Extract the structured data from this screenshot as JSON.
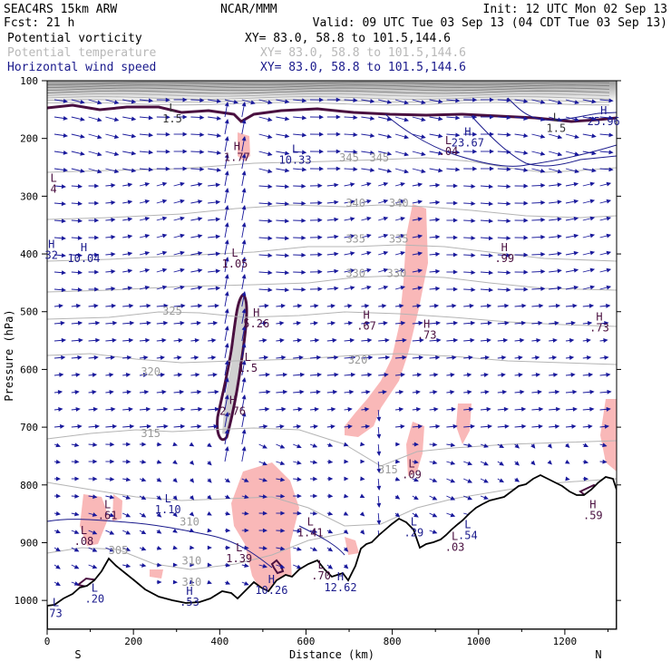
{
  "header": {
    "model": "SEAC4RS 15km ARW",
    "fcst": "Fcst:   21 h",
    "org": "NCAR/MMM",
    "init": "Init: 12 UTC Mon 02 Sep 13",
    "valid": "Valid: 09 UTC Tue 03 Sep 13 (04 CDT Tue 03 Sep 13)"
  },
  "fields": [
    {
      "name": "Potential vorticity",
      "xy": "XY=  83.0, 58.8 to 101.5,144.6",
      "color": "#000000",
      "xy_color": "#000000"
    },
    {
      "name": "Potential temperature",
      "xy": "XY=  83.0, 58.8 to 101.5,144.6",
      "color": "#b8b8b8",
      "xy_color": "#b8b8b8"
    },
    {
      "name": "Horizontal wind speed",
      "xy": "XY=  83.0, 58.8 to 101.5,144.6",
      "color": "#1a1a8c",
      "xy_color": "#1a1a8c"
    }
  ],
  "colors": {
    "pv_contour": "#4a1040",
    "pv_shade": "#f9b8b8",
    "pv_high_shade": "#d0d0d0",
    "theta_contour": "#b4b4b4",
    "wind_contour": "#1a1a8c",
    "wind_vector": "#1a1a9c",
    "terrain": "#000000"
  },
  "chart_data": {
    "type": "cross-section",
    "xlabel": "Distance (km)",
    "ylabel": "Pressure (hPa)",
    "xlim": [
      0,
      1320
    ],
    "ylim": [
      1050,
      100
    ],
    "x_ticks": [
      "0",
      "200",
      "400",
      "600",
      "800",
      "1000",
      "1200"
    ],
    "y_ticks": [
      "100",
      "200",
      "300",
      "400",
      "500",
      "600",
      "700",
      "800",
      "900",
      "1000"
    ],
    "x_ticks_values": [
      0,
      200,
      400,
      600,
      800,
      1000,
      1200
    ],
    "y_ticks_values": [
      100,
      200,
      300,
      400,
      500,
      600,
      700,
      800,
      900,
      1000
    ],
    "south_label": "S",
    "north_label": "N",
    "grid": false,
    "theta_contours": [
      {
        "label": "305",
        "x": 165,
        "p": 920,
        "level": 305
      },
      {
        "label": "310",
        "x": 335,
        "p": 975,
        "level": 310
      },
      {
        "label": "310",
        "x": 330,
        "p": 870,
        "level": 310
      },
      {
        "label": "310",
        "x": 335,
        "p": 938,
        "level": 310
      },
      {
        "label": "315",
        "x": 240,
        "p": 717,
        "level": 315
      },
      {
        "label": "315",
        "x": 790,
        "p": 780,
        "level": 315
      },
      {
        "label": "320",
        "x": 240,
        "p": 610,
        "level": 320
      },
      {
        "label": "320",
        "x": 720,
        "p": 590,
        "level": 320
      },
      {
        "label": "325",
        "x": 290,
        "p": 505,
        "level": 325
      },
      {
        "label": "330",
        "x": 715,
        "p": 440,
        "level": 330
      },
      {
        "label": "330",
        "x": 810,
        "p": 440,
        "level": 330
      },
      {
        "label": "335",
        "x": 715,
        "p": 380,
        "level": 335
      },
      {
        "label": "335",
        "x": 815,
        "p": 380,
        "level": 335
      },
      {
        "label": "340",
        "x": 715,
        "p": 318,
        "level": 340
      },
      {
        "label": "340",
        "x": 815,
        "p": 318,
        "level": 340
      },
      {
        "label": "345",
        "x": 700,
        "p": 240,
        "level": 345
      },
      {
        "label": "345",
        "x": 770,
        "p": 240,
        "level": 345
      }
    ],
    "extrema": [
      {
        "kind": "L",
        "value": "1.5",
        "x": 290,
        "p": 153,
        "color": "#333333"
      },
      {
        "kind": "H",
        "value": "1.77",
        "x": 440,
        "p": 220,
        "color": "#4a1040"
      },
      {
        "kind": "L",
        "value": "10.33",
        "x": 575,
        "p": 225,
        "color": "#1a1a8c"
      },
      {
        "kind": "L",
        "value": "1.5",
        "x": 1180,
        "p": 170,
        "color": "#333333"
      },
      {
        "kind": "H",
        "value": "25.96",
        "x": 1290,
        "p": 158,
        "color": "#1a1a8c"
      },
      {
        "kind": "L",
        "value": ".04",
        "x": 930,
        "p": 210,
        "color": "#4a1040"
      },
      {
        "kind": "H",
        "value": "23.67",
        "x": 975,
        "p": 195,
        "color": "#1a1a8c"
      },
      {
        "kind": "L",
        "value": "4",
        "x": 15,
        "p": 275,
        "color": "#4a1040"
      },
      {
        "kind": "H",
        "value": "32",
        "x": 10,
        "p": 390,
        "color": "#1a1a8c"
      },
      {
        "kind": "H",
        "value": "10.04",
        "x": 85,
        "p": 395,
        "color": "#1a1a8c"
      },
      {
        "kind": "L",
        "value": "1.05",
        "x": 435,
        "p": 405,
        "color": "#4a1040"
      },
      {
        "kind": "H",
        "value": ".99",
        "x": 1060,
        "p": 395,
        "color": "#4a1040"
      },
      {
        "kind": "H",
        "value": "5.26",
        "x": 485,
        "p": 508,
        "color": "#4a1040"
      },
      {
        "kind": "H",
        "value": ".67",
        "x": 740,
        "p": 512,
        "color": "#4a1040"
      },
      {
        "kind": "H",
        "value": ".73",
        "x": 880,
        "p": 528,
        "color": "#4a1040"
      },
      {
        "kind": "H",
        "value": ".73",
        "x": 1280,
        "p": 515,
        "color": "#4a1040"
      },
      {
        "kind": "L",
        "value": "1.5",
        "x": 465,
        "p": 585,
        "color": "#4a1040"
      },
      {
        "kind": "H",
        "value": "2.76",
        "x": 430,
        "p": 660,
        "color": "#4a1040"
      },
      {
        "kind": "L",
        "value": ".09",
        "x": 845,
        "p": 770,
        "color": "#4a1040"
      },
      {
        "kind": "L",
        "value": "1.10",
        "x": 280,
        "p": 830,
        "color": "#1a1a8c"
      },
      {
        "kind": "L",
        "value": ".61",
        "x": 140,
        "p": 840,
        "color": "#4a1040"
      },
      {
        "kind": "L",
        "value": ".08",
        "x": 85,
        "p": 885,
        "color": "#4a1040"
      },
      {
        "kind": "L",
        "value": "1.41",
        "x": 610,
        "p": 870,
        "color": "#4a1040"
      },
      {
        "kind": "L",
        "value": ".29",
        "x": 850,
        "p": 870,
        "color": "#1a1a8c"
      },
      {
        "kind": "L",
        "value": ".54",
        "x": 975,
        "p": 875,
        "color": "#1a1a8c"
      },
      {
        "kind": "L",
        "value": ".03",
        "x": 945,
        "p": 895,
        "color": "#4a1040"
      },
      {
        "kind": "H",
        "value": ".59",
        "x": 1265,
        "p": 840,
        "color": "#4a1040"
      },
      {
        "kind": "L",
        "value": "1.39",
        "x": 445,
        "p": 915,
        "color": "#4a1040"
      },
      {
        "kind": "L",
        "value": ".70",
        "x": 635,
        "p": 945,
        "color": "#4a1040"
      },
      {
        "kind": "H",
        "value": "10.26",
        "x": 520,
        "p": 970,
        "color": "#1a1a8c"
      },
      {
        "kind": "H",
        "value": "12.62",
        "x": 680,
        "p": 965,
        "color": "#1a1a8c"
      },
      {
        "kind": "L",
        "value": ".20",
        "x": 110,
        "p": 985,
        "color": "#1a1a8c"
      },
      {
        "kind": "H",
        "value": ".53",
        "x": 330,
        "p": 990,
        "color": "#1a1a8c"
      },
      {
        "kind": "L",
        "value": "73",
        "x": 20,
        "p": 1010,
        "color": "#1a1a8c"
      }
    ]
  }
}
